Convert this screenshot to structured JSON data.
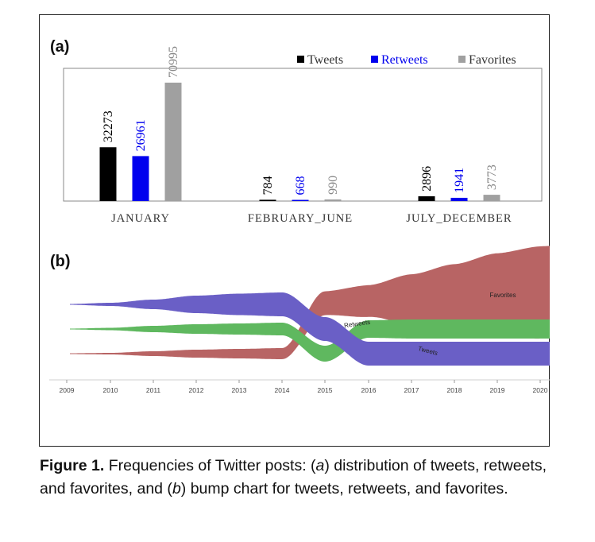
{
  "panel_a_label": "(a)",
  "panel_b_label": "(b)",
  "caption": {
    "figure_label": "Figure 1.",
    "segments": [
      {
        "text": " Frequencies of Twitter posts: (",
        "italic": false
      },
      {
        "text": "a",
        "italic": true
      },
      {
        "text": ") distribution of tweets, retweets, and favorites, and (",
        "italic": false
      },
      {
        "text": "b",
        "italic": true
      },
      {
        "text": ") bump chart for tweets, retweets, and favorites.",
        "italic": false
      }
    ]
  },
  "colors": {
    "tweets_bar": "#000000",
    "retweets_bar": "#0000ee",
    "favorites_bar": "#a0a0a0",
    "tweets_stream": "#6a5fc6",
    "retweets_stream": "#5fb85f",
    "favorites_stream": "#b86464"
  },
  "chart_data": [
    {
      "type": "bar",
      "categories": [
        "JANUARY",
        "FEBRUARY_JUNE",
        "JULY_DECEMBER"
      ],
      "series": [
        {
          "name": "Tweets",
          "values": [
            32273,
            784,
            2896
          ]
        },
        {
          "name": "Retweets",
          "values": [
            26961,
            668,
            1941
          ]
        },
        {
          "name": "Favorites",
          "values": [
            70995,
            990,
            3773
          ]
        }
      ],
      "legend": "top-right",
      "grid": false
    },
    {
      "type": "area",
      "subtype": "bump",
      "x": [
        "2009",
        "2010",
        "2011",
        "2012",
        "2013",
        "2014",
        "2015",
        "2016",
        "2017",
        "2018",
        "2019",
        "2020"
      ],
      "series": [
        {
          "name": "Tweets",
          "ranks": [
            1,
            1,
            1,
            1,
            1,
            1,
            2,
            3,
            3,
            3,
            3,
            3
          ]
        },
        {
          "name": "Retweets",
          "ranks": [
            2,
            2,
            2,
            2,
            2,
            2,
            3,
            2,
            2,
            2,
            2,
            2
          ]
        },
        {
          "name": "Favorites",
          "ranks": [
            3,
            3,
            3,
            3,
            3,
            3,
            1,
            1,
            1,
            1,
            1,
            1
          ]
        }
      ],
      "stream_labels": [
        "Favorites",
        "Retweets",
        "Tweets"
      ],
      "grid": false
    }
  ]
}
